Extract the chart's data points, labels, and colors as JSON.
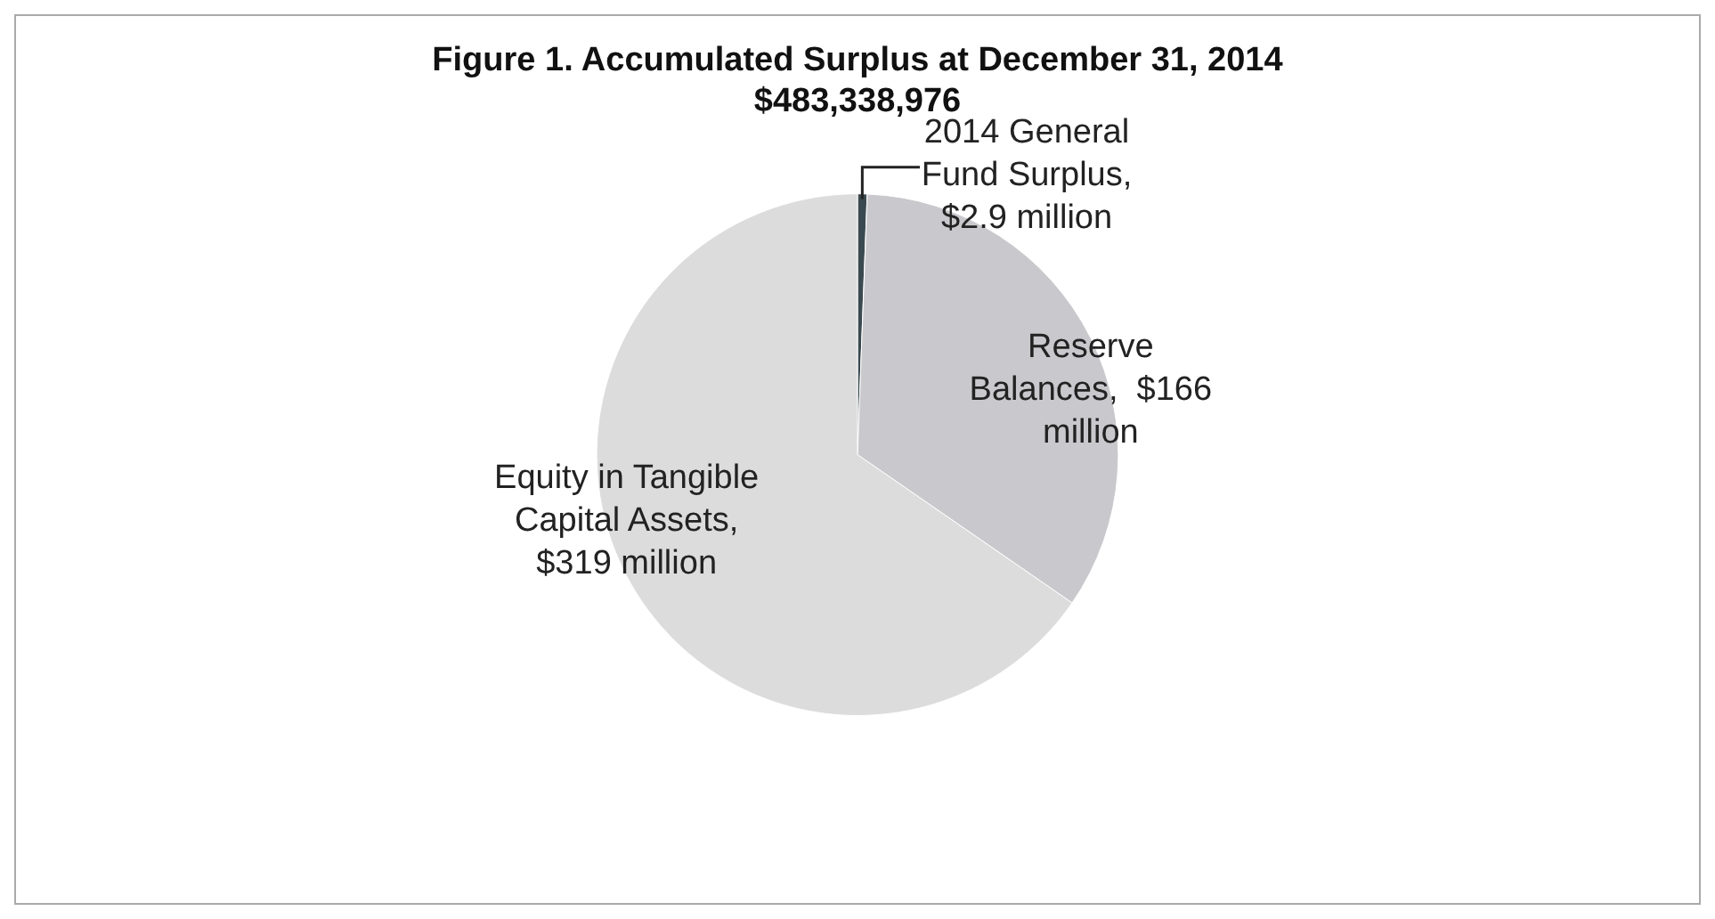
{
  "chart_data": {
    "type": "pie",
    "title": "Figure 1. Accumulated Surplus at December 31, 2014",
    "subtitle": "$483,338,976",
    "categories": [
      "2014 General Fund Surplus, $2.9 million",
      "Reserve Balances,  $166 million",
      "Equity in Tangible Capital Assets, $319 million"
    ],
    "values": [
      2.9,
      166,
      319
    ],
    "colors": [
      "#3b4a50",
      "#c9c9cd",
      "#dcdcdc"
    ],
    "legend": false
  }
}
